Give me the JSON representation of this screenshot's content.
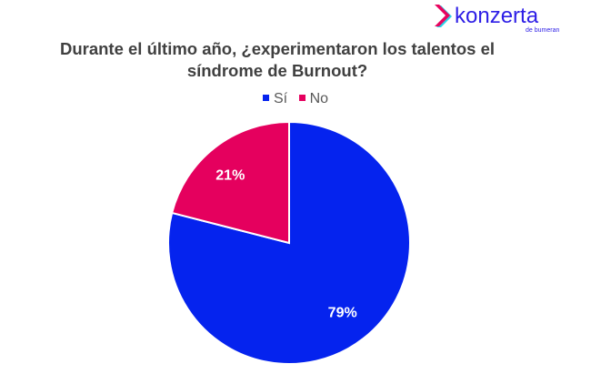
{
  "logo": {
    "text": "konzerta",
    "subtext": "de bumeran",
    "colors": {
      "text": "#2d1ee6",
      "chevron": "#e8045e",
      "chevron2": "#2ad4e8"
    }
  },
  "chart_data": {
    "type": "pie",
    "title": "Durante el último año, ¿experimentaron los talentos el síndrome de Burnout?",
    "title_lines": [
      "Durante el último año, ¿experimentaron los talentos el",
      "síndrome de Burnout?"
    ],
    "legend_position": "top",
    "slices": [
      {
        "label": "Sí",
        "value": 79,
        "data_label": "79%",
        "color": "#0523ee"
      },
      {
        "label": "No",
        "value": 21,
        "data_label": "21%",
        "color": "#e5005e"
      }
    ]
  }
}
